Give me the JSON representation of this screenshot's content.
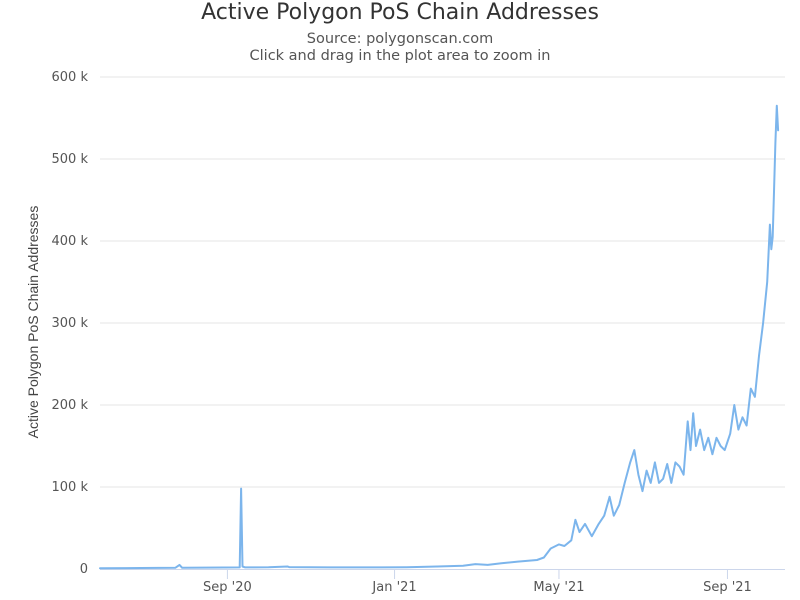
{
  "chart_data": {
    "type": "line",
    "title": "Active Polygon PoS Chain Addresses",
    "subtitle": "Source: polygonscan.com",
    "note": "Click and drag in the plot area to zoom in",
    "ylabel": "Active Polygon PoS Chain Addresses",
    "ylim": [
      0,
      600000
    ],
    "yticks": [
      {
        "value": 0,
        "label": "0"
      },
      {
        "value": 100000,
        "label": "100 k"
      },
      {
        "value": 200000,
        "label": "200 k"
      },
      {
        "value": 300000,
        "label": "300 k"
      },
      {
        "value": 400000,
        "label": "400 k"
      },
      {
        "value": 500000,
        "label": "500 k"
      },
      {
        "value": 600000,
        "label": "600 k"
      }
    ],
    "xlim": [
      "2020-05-31",
      "2021-10-13"
    ],
    "xticks": [
      {
        "value": "2020-09-01",
        "label": "Sep '20"
      },
      {
        "value": "2021-01-01",
        "label": "Jan '21"
      },
      {
        "value": "2021-05-01",
        "label": "May '21"
      },
      {
        "value": "2021-09-01",
        "label": "Sep '21"
      }
    ],
    "grid": true,
    "legend": "none",
    "series": [
      {
        "color": "#7cb5ec",
        "points": [
          [
            "2020-05-31",
            1000
          ],
          [
            "2020-06-30",
            1200
          ],
          [
            "2020-07-25",
            1500
          ],
          [
            "2020-07-28",
            5000
          ],
          [
            "2020-07-30",
            1500
          ],
          [
            "2020-08-30",
            1800
          ],
          [
            "2020-09-10",
            2000
          ],
          [
            "2020-09-11",
            98000
          ],
          [
            "2020-09-12",
            3000
          ],
          [
            "2020-09-14",
            2000
          ],
          [
            "2020-10-01",
            2200
          ],
          [
            "2020-10-15",
            3000
          ],
          [
            "2020-10-16",
            2300
          ],
          [
            "2020-11-15",
            2000
          ],
          [
            "2020-12-15",
            2000
          ],
          [
            "2021-01-10",
            2200
          ],
          [
            "2021-02-01",
            3000
          ],
          [
            "2021-02-20",
            4000
          ],
          [
            "2021-03-01",
            6000
          ],
          [
            "2021-03-10",
            5000
          ],
          [
            "2021-03-20",
            7000
          ],
          [
            "2021-04-01",
            9000
          ],
          [
            "2021-04-15",
            11000
          ],
          [
            "2021-04-20",
            14000
          ],
          [
            "2021-04-25",
            25000
          ],
          [
            "2021-05-01",
            30000
          ],
          [
            "2021-05-05",
            28000
          ],
          [
            "2021-05-10",
            35000
          ],
          [
            "2021-05-13",
            60000
          ],
          [
            "2021-05-16",
            45000
          ],
          [
            "2021-05-20",
            55000
          ],
          [
            "2021-05-25",
            40000
          ],
          [
            "2021-05-30",
            55000
          ],
          [
            "2021-06-03",
            65000
          ],
          [
            "2021-06-07",
            88000
          ],
          [
            "2021-06-10",
            65000
          ],
          [
            "2021-06-14",
            78000
          ],
          [
            "2021-06-18",
            105000
          ],
          [
            "2021-06-22",
            130000
          ],
          [
            "2021-06-25",
            145000
          ],
          [
            "2021-06-28",
            115000
          ],
          [
            "2021-07-01",
            95000
          ],
          [
            "2021-07-04",
            120000
          ],
          [
            "2021-07-07",
            105000
          ],
          [
            "2021-07-10",
            130000
          ],
          [
            "2021-07-13",
            105000
          ],
          [
            "2021-07-16",
            110000
          ],
          [
            "2021-07-19",
            128000
          ],
          [
            "2021-07-22",
            105000
          ],
          [
            "2021-07-25",
            130000
          ],
          [
            "2021-07-28",
            125000
          ],
          [
            "2021-07-31",
            115000
          ],
          [
            "2021-08-03",
            180000
          ],
          [
            "2021-08-05",
            145000
          ],
          [
            "2021-08-07",
            190000
          ],
          [
            "2021-08-09",
            150000
          ],
          [
            "2021-08-12",
            170000
          ],
          [
            "2021-08-15",
            145000
          ],
          [
            "2021-08-18",
            160000
          ],
          [
            "2021-08-21",
            140000
          ],
          [
            "2021-08-24",
            160000
          ],
          [
            "2021-08-27",
            150000
          ],
          [
            "2021-08-30",
            145000
          ],
          [
            "2021-09-03",
            165000
          ],
          [
            "2021-09-06",
            200000
          ],
          [
            "2021-09-09",
            170000
          ],
          [
            "2021-09-12",
            185000
          ],
          [
            "2021-09-15",
            175000
          ],
          [
            "2021-09-18",
            220000
          ],
          [
            "2021-09-21",
            210000
          ],
          [
            "2021-09-24",
            260000
          ],
          [
            "2021-09-27",
            300000
          ],
          [
            "2021-09-30",
            350000
          ],
          [
            "2021-10-02",
            420000
          ],
          [
            "2021-10-03",
            390000
          ],
          [
            "2021-10-04",
            405000
          ],
          [
            "2021-10-05",
            460000
          ],
          [
            "2021-10-06",
            520000
          ],
          [
            "2021-10-07",
            565000
          ],
          [
            "2021-10-08",
            535000
          ]
        ]
      }
    ]
  }
}
